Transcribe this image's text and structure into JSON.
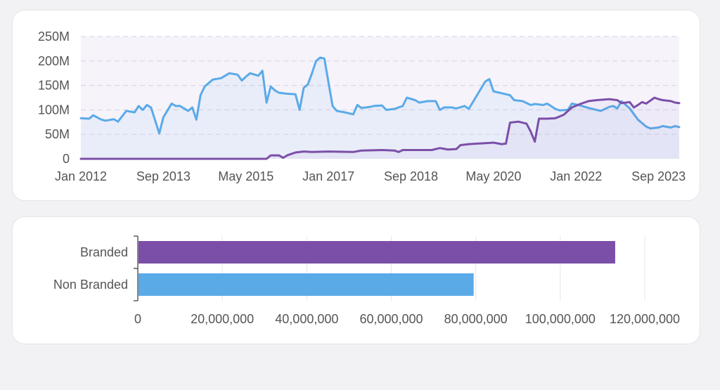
{
  "colors": {
    "branded": "#7b4fa8",
    "non_branded": "#5aaae8",
    "grid": "#dcd7e8",
    "plot_bg": "#f6f3fb"
  },
  "chart_data": [
    {
      "type": "line",
      "title": "",
      "xlabel": "",
      "ylabel": "",
      "x_tick_labels": [
        "Jan 2012",
        "Sep 2013",
        "May 2015",
        "Jan 2017",
        "Sep 2018",
        "May 2020",
        "Jan 2022",
        "Sep 2023"
      ],
      "y_tick_labels": [
        "0",
        "50M",
        "100M",
        "150M",
        "200M",
        "250M"
      ],
      "ylim": [
        0,
        250000000
      ],
      "xlim": [
        "2012-01",
        "2024-02"
      ],
      "grid": true,
      "series": [
        {
          "color": "#5aaae8",
          "points": [
            [
              "2012-01",
              83000000
            ],
            [
              "2012-03",
              82000000
            ],
            [
              "2012-04",
              89000000
            ],
            [
              "2012-06",
              80000000
            ],
            [
              "2012-07",
              78000000
            ],
            [
              "2012-09",
              81000000
            ],
            [
              "2012-10",
              76000000
            ],
            [
              "2012-12",
              98000000
            ],
            [
              "2013-02",
              95000000
            ],
            [
              "2013-03",
              108000000
            ],
            [
              "2013-04",
              100000000
            ],
            [
              "2013-05",
              110000000
            ],
            [
              "2013-06",
              105000000
            ],
            [
              "2013-08",
              52000000
            ],
            [
              "2013-09",
              85000000
            ],
            [
              "2013-11",
              113000000
            ],
            [
              "2013-12",
              108000000
            ],
            [
              "2014-01",
              108000000
            ],
            [
              "2014-03",
              98000000
            ],
            [
              "2014-04",
              105000000
            ],
            [
              "2014-05",
              80000000
            ],
            [
              "2014-06",
              130000000
            ],
            [
              "2014-07",
              148000000
            ],
            [
              "2014-09",
              162000000
            ],
            [
              "2014-11",
              165000000
            ],
            [
              "2014-12",
              170000000
            ],
            [
              "2015-01",
              175000000
            ],
            [
              "2015-03",
              172000000
            ],
            [
              "2015-04",
              160000000
            ],
            [
              "2015-05",
              168000000
            ],
            [
              "2015-06",
              175000000
            ],
            [
              "2015-08",
              170000000
            ],
            [
              "2015-09",
              180000000
            ],
            [
              "2015-10",
              115000000
            ],
            [
              "2015-11",
              148000000
            ],
            [
              "2015-12",
              140000000
            ],
            [
              "2016-01",
              135000000
            ],
            [
              "2016-03",
              133000000
            ],
            [
              "2016-05",
              132000000
            ],
            [
              "2016-06",
              100000000
            ],
            [
              "2016-07",
              145000000
            ],
            [
              "2016-08",
              152000000
            ],
            [
              "2016-09",
              175000000
            ],
            [
              "2016-10",
              200000000
            ],
            [
              "2016-11",
              207000000
            ],
            [
              "2016-12",
              205000000
            ],
            [
              "2017-02",
              108000000
            ],
            [
              "2017-03",
              98000000
            ],
            [
              "2017-05",
              95000000
            ],
            [
              "2017-07",
              91000000
            ],
            [
              "2017-08",
              110000000
            ],
            [
              "2017-09",
              104000000
            ],
            [
              "2017-11",
              106000000
            ],
            [
              "2017-12",
              108000000
            ],
            [
              "2018-02",
              109000000
            ],
            [
              "2018-03",
              100000000
            ],
            [
              "2018-05",
              102000000
            ],
            [
              "2018-07",
              108000000
            ],
            [
              "2018-08",
              125000000
            ],
            [
              "2018-10",
              120000000
            ],
            [
              "2018-11",
              115000000
            ],
            [
              "2019-01",
              118000000
            ],
            [
              "2019-03",
              118000000
            ],
            [
              "2019-04",
              100000000
            ],
            [
              "2019-05",
              105000000
            ],
            [
              "2019-07",
              105000000
            ],
            [
              "2019-08",
              103000000
            ],
            [
              "2019-10",
              108000000
            ],
            [
              "2019-11",
              102000000
            ],
            [
              "2020-01",
              130000000
            ],
            [
              "2020-03",
              158000000
            ],
            [
              "2020-04",
              163000000
            ],
            [
              "2020-05",
              138000000
            ],
            [
              "2020-07",
              134000000
            ],
            [
              "2020-09",
              130000000
            ],
            [
              "2020-10",
              120000000
            ],
            [
              "2020-12",
              118000000
            ],
            [
              "2021-02",
              110000000
            ],
            [
              "2021-03",
              112000000
            ],
            [
              "2021-05",
              110000000
            ],
            [
              "2021-06",
              113000000
            ],
            [
              "2021-08",
              102000000
            ],
            [
              "2021-09",
              99000000
            ],
            [
              "2021-11",
              100000000
            ],
            [
              "2021-12",
              113000000
            ],
            [
              "2022-02",
              109000000
            ],
            [
              "2022-04",
              104000000
            ],
            [
              "2022-06",
              100000000
            ],
            [
              "2022-07",
              98000000
            ],
            [
              "2022-09",
              106000000
            ],
            [
              "2022-10",
              108000000
            ],
            [
              "2022-11",
              103000000
            ],
            [
              "2022-12",
              118000000
            ],
            [
              "2023-02",
              103000000
            ],
            [
              "2023-04",
              80000000
            ],
            [
              "2023-06",
              66000000
            ],
            [
              "2023-07",
              62000000
            ],
            [
              "2023-09",
              64000000
            ],
            [
              "2023-10",
              67000000
            ],
            [
              "2023-12",
              64000000
            ],
            [
              "2024-01",
              67000000
            ],
            [
              "2024-02",
              65000000
            ]
          ]
        },
        {
          "color": "#7b4fa8",
          "points": [
            [
              "2012-01",
              0
            ],
            [
              "2015-10",
              0
            ],
            [
              "2015-11",
              7000000
            ],
            [
              "2016-01",
              7000000
            ],
            [
              "2016-02",
              2000000
            ],
            [
              "2016-03",
              7000000
            ],
            [
              "2016-05",
              13000000
            ],
            [
              "2016-07",
              15000000
            ],
            [
              "2016-09",
              14000000
            ],
            [
              "2017-01",
              15000000
            ],
            [
              "2017-07",
              14000000
            ],
            [
              "2017-09",
              17000000
            ],
            [
              "2018-02",
              18000000
            ],
            [
              "2018-05",
              17000000
            ],
            [
              "2018-06",
              14000000
            ],
            [
              "2018-07",
              18000000
            ],
            [
              "2019-02",
              18000000
            ],
            [
              "2019-04",
              22000000
            ],
            [
              "2019-06",
              19000000
            ],
            [
              "2019-08",
              20000000
            ],
            [
              "2019-09",
              28000000
            ],
            [
              "2019-11",
              30000000
            ],
            [
              "2020-01",
              31000000
            ],
            [
              "2020-03",
              32000000
            ],
            [
              "2020-05",
              33000000
            ],
            [
              "2020-07",
              30000000
            ],
            [
              "2020-08",
              31000000
            ],
            [
              "2020-09",
              74000000
            ],
            [
              "2020-11",
              76000000
            ],
            [
              "2021-01",
              72000000
            ],
            [
              "2021-02",
              56000000
            ],
            [
              "2021-03",
              35000000
            ],
            [
              "2021-04",
              82000000
            ],
            [
              "2021-06",
              82000000
            ],
            [
              "2021-08",
              83000000
            ],
            [
              "2021-10",
              90000000
            ],
            [
              "2021-12",
              105000000
            ],
            [
              "2022-02",
              112000000
            ],
            [
              "2022-04",
              118000000
            ],
            [
              "2022-06",
              120000000
            ],
            [
              "2022-09",
              122000000
            ],
            [
              "2022-11",
              120000000
            ],
            [
              "2022-12",
              114000000
            ],
            [
              "2023-02",
              116000000
            ],
            [
              "2023-03",
              105000000
            ],
            [
              "2023-04",
              110000000
            ],
            [
              "2023-05",
              116000000
            ],
            [
              "2023-06",
              113000000
            ],
            [
              "2023-08",
              125000000
            ],
            [
              "2023-09",
              122000000
            ],
            [
              "2023-10",
              120000000
            ],
            [
              "2023-12",
              118000000
            ],
            [
              "2024-01",
              115000000
            ],
            [
              "2024-02",
              114000000
            ]
          ]
        }
      ]
    },
    {
      "type": "bar",
      "orientation": "horizontal",
      "categories": [
        "Branded",
        "Non Branded"
      ],
      "values": [
        113000000,
        79500000
      ],
      "x_tick_labels": [
        "0",
        "20,000,000",
        "40,000,000",
        "60,000,000",
        "80,000,000",
        "100,000,000",
        "120,000,000"
      ],
      "xlim": [
        0,
        120000000
      ],
      "grid": true
    }
  ]
}
